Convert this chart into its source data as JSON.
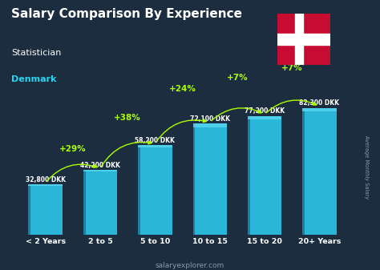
{
  "title": "Salary Comparison By Experience",
  "subtitle": "Statistician",
  "country": "Denmark",
  "categories": [
    "< 2 Years",
    "2 to 5",
    "5 to 10",
    "10 to 15",
    "15 to 20",
    "20+ Years"
  ],
  "values": [
    32800,
    42200,
    58200,
    72100,
    77200,
    82300
  ],
  "value_labels": [
    "32,800 DKK",
    "42,200 DKK",
    "58,200 DKK",
    "72,100 DKK",
    "77,200 DKK",
    "82,300 DKK"
  ],
  "pct_changes": [
    "+29%",
    "+38%",
    "+24%",
    "+7%",
    "+7%"
  ],
  "bar_color": "#29b6d8",
  "bar_highlight": "#55d4f0",
  "bar_dark": "#1a7fa0",
  "bg_color": "#1c2d3f",
  "text_white": "#ffffff",
  "text_green": "#aaff00",
  "text_cyan": "#29d4f0",
  "text_gray": "#8899aa",
  "footer": "salaryexplorer.com",
  "ylabel": "Average Monthly Salary",
  "ylim": [
    0,
    98000
  ],
  "flag_red": "#C60C30",
  "flag_white": "#ffffff"
}
